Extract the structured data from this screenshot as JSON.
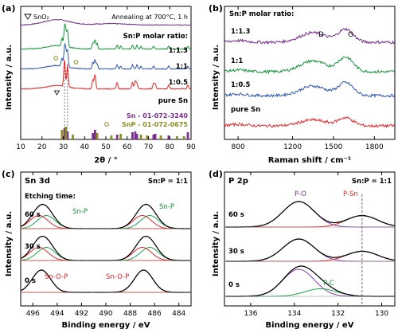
{
  "colors": {
    "red": "#e8262a",
    "blue": "#2e56b8",
    "green": "#17963b",
    "purple": "#7a2f91",
    "olive": "#8c8c21",
    "fit_green": "#18a84a",
    "fit_red": "#e8262a",
    "fit_purple": "#8a3fb0",
    "dashed": "#555555"
  },
  "chart_data": [
    {
      "id": "a",
      "panel_label": "(a)",
      "type": "line",
      "xlabel": "2θ / °",
      "ylabel": "Intensity / a.u.",
      "xlim": [
        10,
        90
      ],
      "xticks": [
        10,
        20,
        30,
        40,
        50,
        60,
        70,
        80,
        90
      ],
      "legend_symbol_label": "SnO₂",
      "annotation": "Annealing at 700°C, 1 h",
      "ratio_title": "Sn:P molar ratio:",
      "series": [
        {
          "name": "1:1.3",
          "color": "purple",
          "offset": 0.86,
          "kind": "amorphous"
        },
        {
          "name": "1:1",
          "color": "green",
          "offset": 0.68,
          "kind": "crystal"
        },
        {
          "name": "1:0.5",
          "color": "blue",
          "offset": 0.53,
          "kind": "crystal"
        },
        {
          "name": "pure Sn",
          "color": "red",
          "offset": 0.38,
          "kind": "tin"
        }
      ],
      "sn_peaks": [
        30.6,
        32.0,
        43.9,
        44.9,
        55.3,
        62.5,
        63.8,
        64.6,
        72.4,
        73.2,
        79.5,
        88.5
      ],
      "snp_peaks": [
        29.4,
        31.2,
        34.5,
        45.9,
        52.6,
        57.0,
        66.5,
        69.4,
        75.8,
        83.4,
        86.7
      ],
      "circle_markers_2theta": [
        26.5,
        36.0
      ],
      "triangle_marker_2theta": 27.0,
      "reference_labels": [
        "Sn - 01-072-3240",
        "SnP - 01-072-0675"
      ]
    },
    {
      "id": "b",
      "panel_label": "(b)",
      "type": "line",
      "xlabel": "Raman shift / cm⁻¹",
      "ylabel": "Intensity / a.u.",
      "xlim": [
        700,
        1950
      ],
      "xticks": [
        800,
        1200,
        1500,
        1800
      ],
      "ratio_title": "Sn:P molar ratio:",
      "band_labels": [
        {
          "text": "D",
          "x": 1350
        },
        {
          "text": "G",
          "x": 1590
        }
      ],
      "series": [
        {
          "name": "1:1.3",
          "color": "purple"
        },
        {
          "name": "1:1",
          "color": "green"
        },
        {
          "name": "1:0.5",
          "color": "blue"
        },
        {
          "name": "pure Sn",
          "color": "red"
        }
      ]
    },
    {
      "id": "c",
      "panel_label": "(c)",
      "type": "line",
      "title": "Sn 3d",
      "ratio": "Sn:P = 1:1",
      "etching_title": "Etching time:",
      "xlabel": "Binding energy / eV",
      "xlim": [
        483,
        497
      ],
      "xticks": [
        496,
        494,
        492,
        490,
        488,
        486,
        484
      ],
      "reversed_x": true,
      "rows": [
        {
          "label": "60 s",
          "components": [
            {
              "name": "Sn-P",
              "center": 494.9,
              "color": "fit_green"
            },
            {
              "name": "Sn-O-P",
              "center": 495.5,
              "color": "fit_red"
            },
            {
              "name": "Sn-P",
              "center": 486.4,
              "color": "fit_green"
            },
            {
              "name": "Sn-O-P",
              "center": 487.0,
              "color": "fit_red"
            }
          ]
        },
        {
          "label": "30 s",
          "components": [
            {
              "name": "Sn-P",
              "center": 494.9,
              "color": "fit_green"
            },
            {
              "name": "Sn-O-P",
              "center": 495.5,
              "color": "fit_red"
            },
            {
              "name": "Sn-P",
              "center": 486.4,
              "color": "fit_green"
            },
            {
              "name": "Sn-O-P",
              "center": 487.0,
              "color": "fit_red"
            }
          ]
        },
        {
          "label": "0 s",
          "components": [
            {
              "name": "Sn-O-P",
              "center": 495.3,
              "color": "fit_red"
            },
            {
              "name": "Sn-O-P",
              "center": 486.9,
              "color": "fit_red"
            }
          ]
        }
      ],
      "peak_labels": [
        "Sn-P",
        "Sn-P",
        "Sn-O-P",
        "Sn-O-P"
      ]
    },
    {
      "id": "d",
      "panel_label": "(d)",
      "type": "line",
      "title": "P 2p",
      "ratio": "Sn:P = 1:1",
      "xlabel": "Binding energy / eV",
      "xlim": [
        129.4,
        137.2
      ],
      "xticks": [
        136,
        134,
        132,
        130
      ],
      "reversed_x": true,
      "dashed_line_at": 130.9,
      "rows": [
        {
          "label": "60 s",
          "components": [
            {
              "name": "P-O",
              "center": 133.8,
              "color": "fit_purple"
            },
            {
              "name": "P-Sn",
              "center": 130.9,
              "color": "fit_red"
            }
          ]
        },
        {
          "label": "30 s",
          "components": [
            {
              "name": "P-O",
              "center": 133.8,
              "color": "fit_purple"
            },
            {
              "name": "P-Sn",
              "center": 130.9,
              "color": "fit_red"
            }
          ]
        },
        {
          "label": "0 s",
          "components": [
            {
              "name": "P-O",
              "center": 133.8,
              "color": "fit_purple"
            },
            {
              "name": "P-C",
              "center": 132.8,
              "color": "fit_green"
            }
          ]
        }
      ],
      "peak_labels": [
        "P-O",
        "P-Sn",
        "P-C"
      ]
    }
  ]
}
